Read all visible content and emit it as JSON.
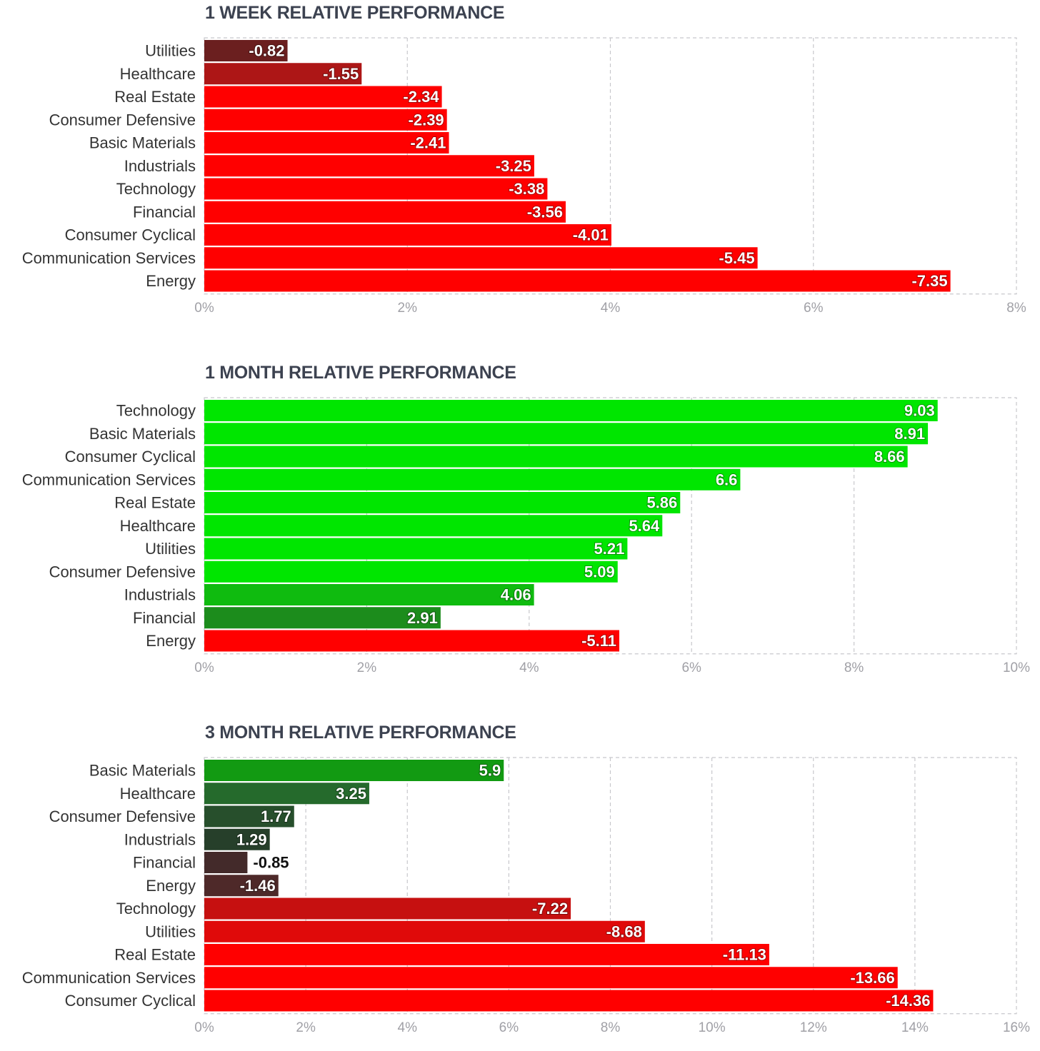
{
  "chart_data": [
    {
      "type": "bar",
      "orientation": "horizontal",
      "title": "1 WEEK RELATIVE PERFORMANCE",
      "categories": [
        "Utilities",
        "Healthcare",
        "Real Estate",
        "Consumer Defensive",
        "Basic Materials",
        "Industrials",
        "Technology",
        "Financial",
        "Consumer Cyclical",
        "Communication Services",
        "Energy"
      ],
      "values": [
        -0.82,
        -1.55,
        -2.34,
        -2.39,
        -2.41,
        -3.25,
        -3.38,
        -3.56,
        -4.01,
        -5.45,
        -7.35
      ],
      "data_labels": [
        "-0.82",
        "-1.55",
        "-2.34",
        "-2.39",
        "-2.41",
        "-3.25",
        "-3.38",
        "-3.56",
        "-4.01",
        "-5.45",
        "-7.35"
      ],
      "bar_colors": [
        "#6b1f1f",
        "#ad1616",
        "#ff0000",
        "#ff0000",
        "#ff0000",
        "#ff0000",
        "#ff0000",
        "#ff0000",
        "#ff0000",
        "#ff0000",
        "#ff0000"
      ],
      "label_colors": [
        "#ffffff",
        "#ffffff",
        "#ffffff",
        "#ffffff",
        "#ffffff",
        "#ffffff",
        "#ffffff",
        "#ffffff",
        "#ffffff",
        "#ffffff",
        "#ffffff"
      ],
      "xlim": [
        0,
        8
      ],
      "xticks": [
        "0%",
        "2%",
        "4%",
        "6%",
        "8%"
      ],
      "grid": true,
      "scale_note": "bar length shows absolute value"
    },
    {
      "type": "bar",
      "orientation": "horizontal",
      "title": "1 MONTH RELATIVE PERFORMANCE",
      "categories": [
        "Technology",
        "Basic Materials",
        "Consumer Cyclical",
        "Communication Services",
        "Real Estate",
        "Healthcare",
        "Utilities",
        "Consumer Defensive",
        "Industrials",
        "Financial",
        "Energy"
      ],
      "values": [
        9.03,
        8.91,
        8.66,
        6.6,
        5.86,
        5.64,
        5.21,
        5.09,
        4.06,
        2.91,
        -5.11
      ],
      "data_labels": [
        "9.03",
        "8.91",
        "8.66",
        "6.6",
        "5.86",
        "5.64",
        "5.21",
        "5.09",
        "4.06",
        "2.91",
        "-5.11"
      ],
      "bar_colors": [
        "#00e600",
        "#00e600",
        "#00e600",
        "#00e600",
        "#00e600",
        "#00e600",
        "#00e600",
        "#00e600",
        "#0fbb0f",
        "#1c8c1c",
        "#ff0000"
      ],
      "label_colors": [
        "#ffffff",
        "#ffffff",
        "#ffffff",
        "#ffffff",
        "#ffffff",
        "#ffffff",
        "#ffffff",
        "#ffffff",
        "#ffffff",
        "#ffffff",
        "#ffffff"
      ],
      "xlim": [
        0,
        10
      ],
      "xticks": [
        "0%",
        "2%",
        "4%",
        "6%",
        "8%",
        "10%"
      ],
      "grid": true,
      "scale_note": "bar length shows absolute value"
    },
    {
      "type": "bar",
      "orientation": "horizontal",
      "title": "3 MONTH RELATIVE PERFORMANCE",
      "categories": [
        "Basic Materials",
        "Healthcare",
        "Consumer Defensive",
        "Industrials",
        "Financial",
        "Energy",
        "Technology",
        "Utilities",
        "Real Estate",
        "Communication Services",
        "Consumer Cyclical"
      ],
      "values": [
        5.9,
        3.25,
        1.77,
        1.29,
        -0.85,
        -1.46,
        -7.22,
        -8.68,
        -11.13,
        -13.66,
        -14.36
      ],
      "data_labels": [
        "5.9",
        "3.25",
        "1.77",
        "1.29",
        "-0.85",
        "-1.46",
        "-7.22",
        "-8.68",
        "-11.13",
        "-13.66",
        "-14.36"
      ],
      "bar_colors": [
        "#129a12",
        "#256a2c",
        "#274f2c",
        "#263f2a",
        "#432a2a",
        "#4e2929",
        "#c61010",
        "#e00a0a",
        "#ff0000",
        "#ff0000",
        "#ff0000"
      ],
      "label_colors": [
        "#ffffff",
        "#ffffff",
        "#ffffff",
        "#ffffff",
        "#111111",
        "#ffffff",
        "#ffffff",
        "#ffffff",
        "#ffffff",
        "#ffffff",
        "#ffffff"
      ],
      "xlim": [
        0,
        16
      ],
      "xticks": [
        "0%",
        "2%",
        "4%",
        "6%",
        "8%",
        "10%",
        "12%",
        "14%",
        "16%"
      ],
      "grid": true,
      "scale_note": "bar length shows absolute value"
    }
  ]
}
